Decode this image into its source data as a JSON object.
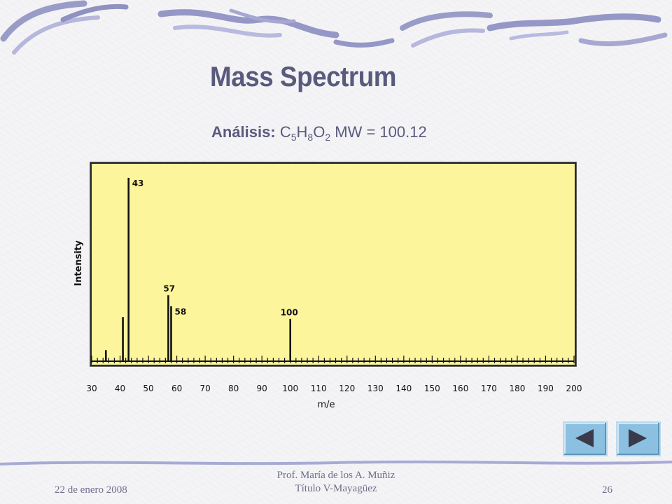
{
  "slide": {
    "title": "Mass Spectrum",
    "analysis_label": "Análisis:",
    "formula": {
      "c": "C",
      "c_n": "5",
      "h": "H",
      "h_n": "8",
      "o": "O",
      "o_n": "2"
    },
    "mw_text": "MW = 100.12"
  },
  "footer": {
    "date": "22 de enero 2008",
    "author": "Prof. María de los A. Muñiz",
    "course": "Título V-Mayagüez",
    "page_number": "26"
  },
  "nav": {
    "prev_icon": "triangle-left-icon",
    "next_icon": "triangle-right-icon"
  },
  "colors": {
    "accent": "#5a5a7e",
    "plot_bg": "#fdf59c",
    "nav_button": "#8cc0e0"
  },
  "chart_data": {
    "type": "bar",
    "xlabel": "m/e",
    "ylabel": "Intensity",
    "xlim": [
      30,
      200
    ],
    "ylim": [
      0,
      100
    ],
    "x_ticks": [
      30,
      40,
      50,
      60,
      70,
      80,
      90,
      100,
      110,
      120,
      130,
      140,
      150,
      160,
      170,
      180,
      190,
      200
    ],
    "peaks": [
      {
        "mz": 35,
        "intensity": 6
      },
      {
        "mz": 41,
        "intensity": 24
      },
      {
        "mz": 43,
        "intensity": 100,
        "label": "43"
      },
      {
        "mz": 57,
        "intensity": 36,
        "label": "57"
      },
      {
        "mz": 58,
        "intensity": 30,
        "label": "58"
      },
      {
        "mz": 100,
        "intensity": 23,
        "label": "100"
      }
    ]
  }
}
